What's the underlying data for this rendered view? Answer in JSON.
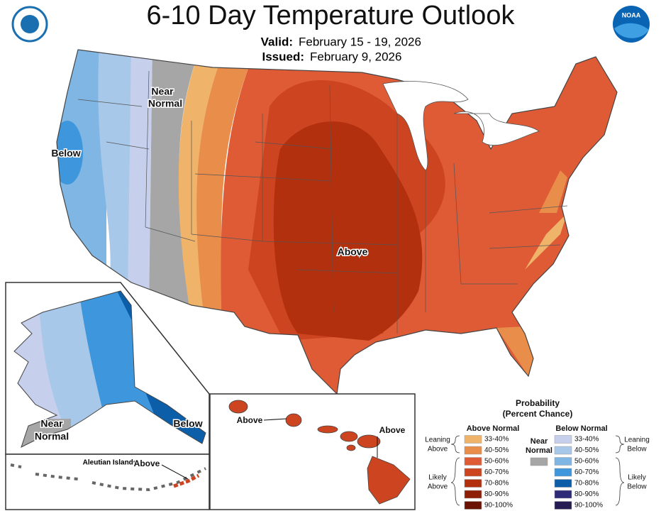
{
  "header": {
    "title": "6-10 Day Temperature Outlook",
    "valid_label": "Valid:",
    "valid_dates": "February 15 - 19, 2026",
    "issued_label": "Issued:",
    "issued_date": "February 9, 2026",
    "logo_text": "NOAA"
  },
  "map_labels": {
    "near_normal": [
      "Near",
      "Normal"
    ],
    "below": "Below",
    "above": "Above"
  },
  "alaska_labels": {
    "near_normal": [
      "Near",
      "Normal"
    ],
    "below": "Below"
  },
  "hawaii_labels": {
    "above_west": "Above",
    "above_east": "Above"
  },
  "aleutian_labels": {
    "name": "Aleutian Islands",
    "above": "Above"
  },
  "legend": {
    "title": [
      "Probability",
      "(Percent Chance)"
    ],
    "above_header": "Above Normal",
    "below_header": "Below Normal",
    "near_normal": [
      "Near",
      "Normal"
    ],
    "near_color": "#a6a6a6",
    "leaning_above": [
      "Leaning",
      "Above"
    ],
    "likely_above": [
      "Likely",
      "Above"
    ],
    "leaning_below": [
      "Leaning",
      "Below"
    ],
    "likely_below": [
      "Likely",
      "Below"
    ],
    "above": [
      {
        "label": "33-40%",
        "color": "#f0b36a"
      },
      {
        "label": "40-50%",
        "color": "#e98d4b"
      },
      {
        "label": "50-60%",
        "color": "#de5b36"
      },
      {
        "label": "60-70%",
        "color": "#cc4420"
      },
      {
        "label": "70-80%",
        "color": "#b3300e"
      },
      {
        "label": "80-90%",
        "color": "#8e1e06"
      },
      {
        "label": "90-100%",
        "color": "#6b1203"
      }
    ],
    "below": [
      {
        "label": "33-40%",
        "color": "#c6d0ec"
      },
      {
        "label": "40-50%",
        "color": "#a8c8ea"
      },
      {
        "label": "50-60%",
        "color": "#7fb6e3"
      },
      {
        "label": "60-70%",
        "color": "#3e97dc"
      },
      {
        "label": "70-80%",
        "color": "#0d5ea8"
      },
      {
        "label": "80-90%",
        "color": "#2d2a78"
      },
      {
        "label": "90-100%",
        "color": "#241c52"
      }
    ]
  }
}
